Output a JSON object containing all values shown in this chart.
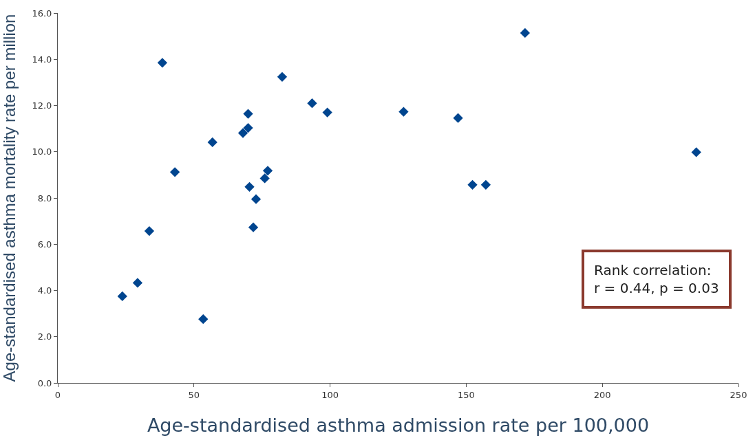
{
  "chart_data": {
    "type": "scatter",
    "xlabel": "Age-standardised asthma admission rate per 100,000",
    "ylabel": "Age-standardised asthma mortality rate per million",
    "annotations": [
      "Rank correlation:\nr = 0.44, p = 0.03"
    ],
    "x": [
      23.7,
      29.3,
      33.6,
      38.4,
      43.0,
      53.4,
      56.8,
      68.0,
      69.9,
      69.9,
      70.4,
      71.8,
      72.8,
      76.0,
      77.1,
      82.4,
      93.4,
      99.0,
      127.0,
      147.0,
      152.3,
      157.2,
      171.6,
      234.5
    ],
    "values": [
      3.75,
      4.33,
      6.57,
      13.85,
      9.12,
      2.76,
      10.41,
      10.81,
      11.03,
      11.64,
      8.48,
      6.73,
      7.95,
      8.85,
      9.18,
      13.24,
      12.1,
      11.7,
      11.73,
      11.46,
      8.57,
      8.57,
      15.14,
      9.98
    ],
    "color": "#00458f",
    "marker": "diamond",
    "legend": false,
    "xlim": [
      0,
      250
    ],
    "xticks": [
      0,
      50,
      100,
      150,
      200,
      250
    ],
    "ylim": [
      0,
      16
    ],
    "yticks": [
      {
        "value": 0,
        "label": "0.0"
      },
      {
        "value": 2,
        "label": "2.0"
      },
      {
        "value": 4,
        "label": "4.0"
      },
      {
        "value": 6,
        "label": "6.0"
      },
      {
        "value": 8,
        "label": "8.0"
      },
      {
        "value": 10,
        "label": "10.0"
      },
      {
        "value": 12,
        "label": "12.0"
      },
      {
        "value": 14,
        "label": "14.0"
      },
      {
        "value": 16,
        "label": "16.0"
      }
    ]
  }
}
